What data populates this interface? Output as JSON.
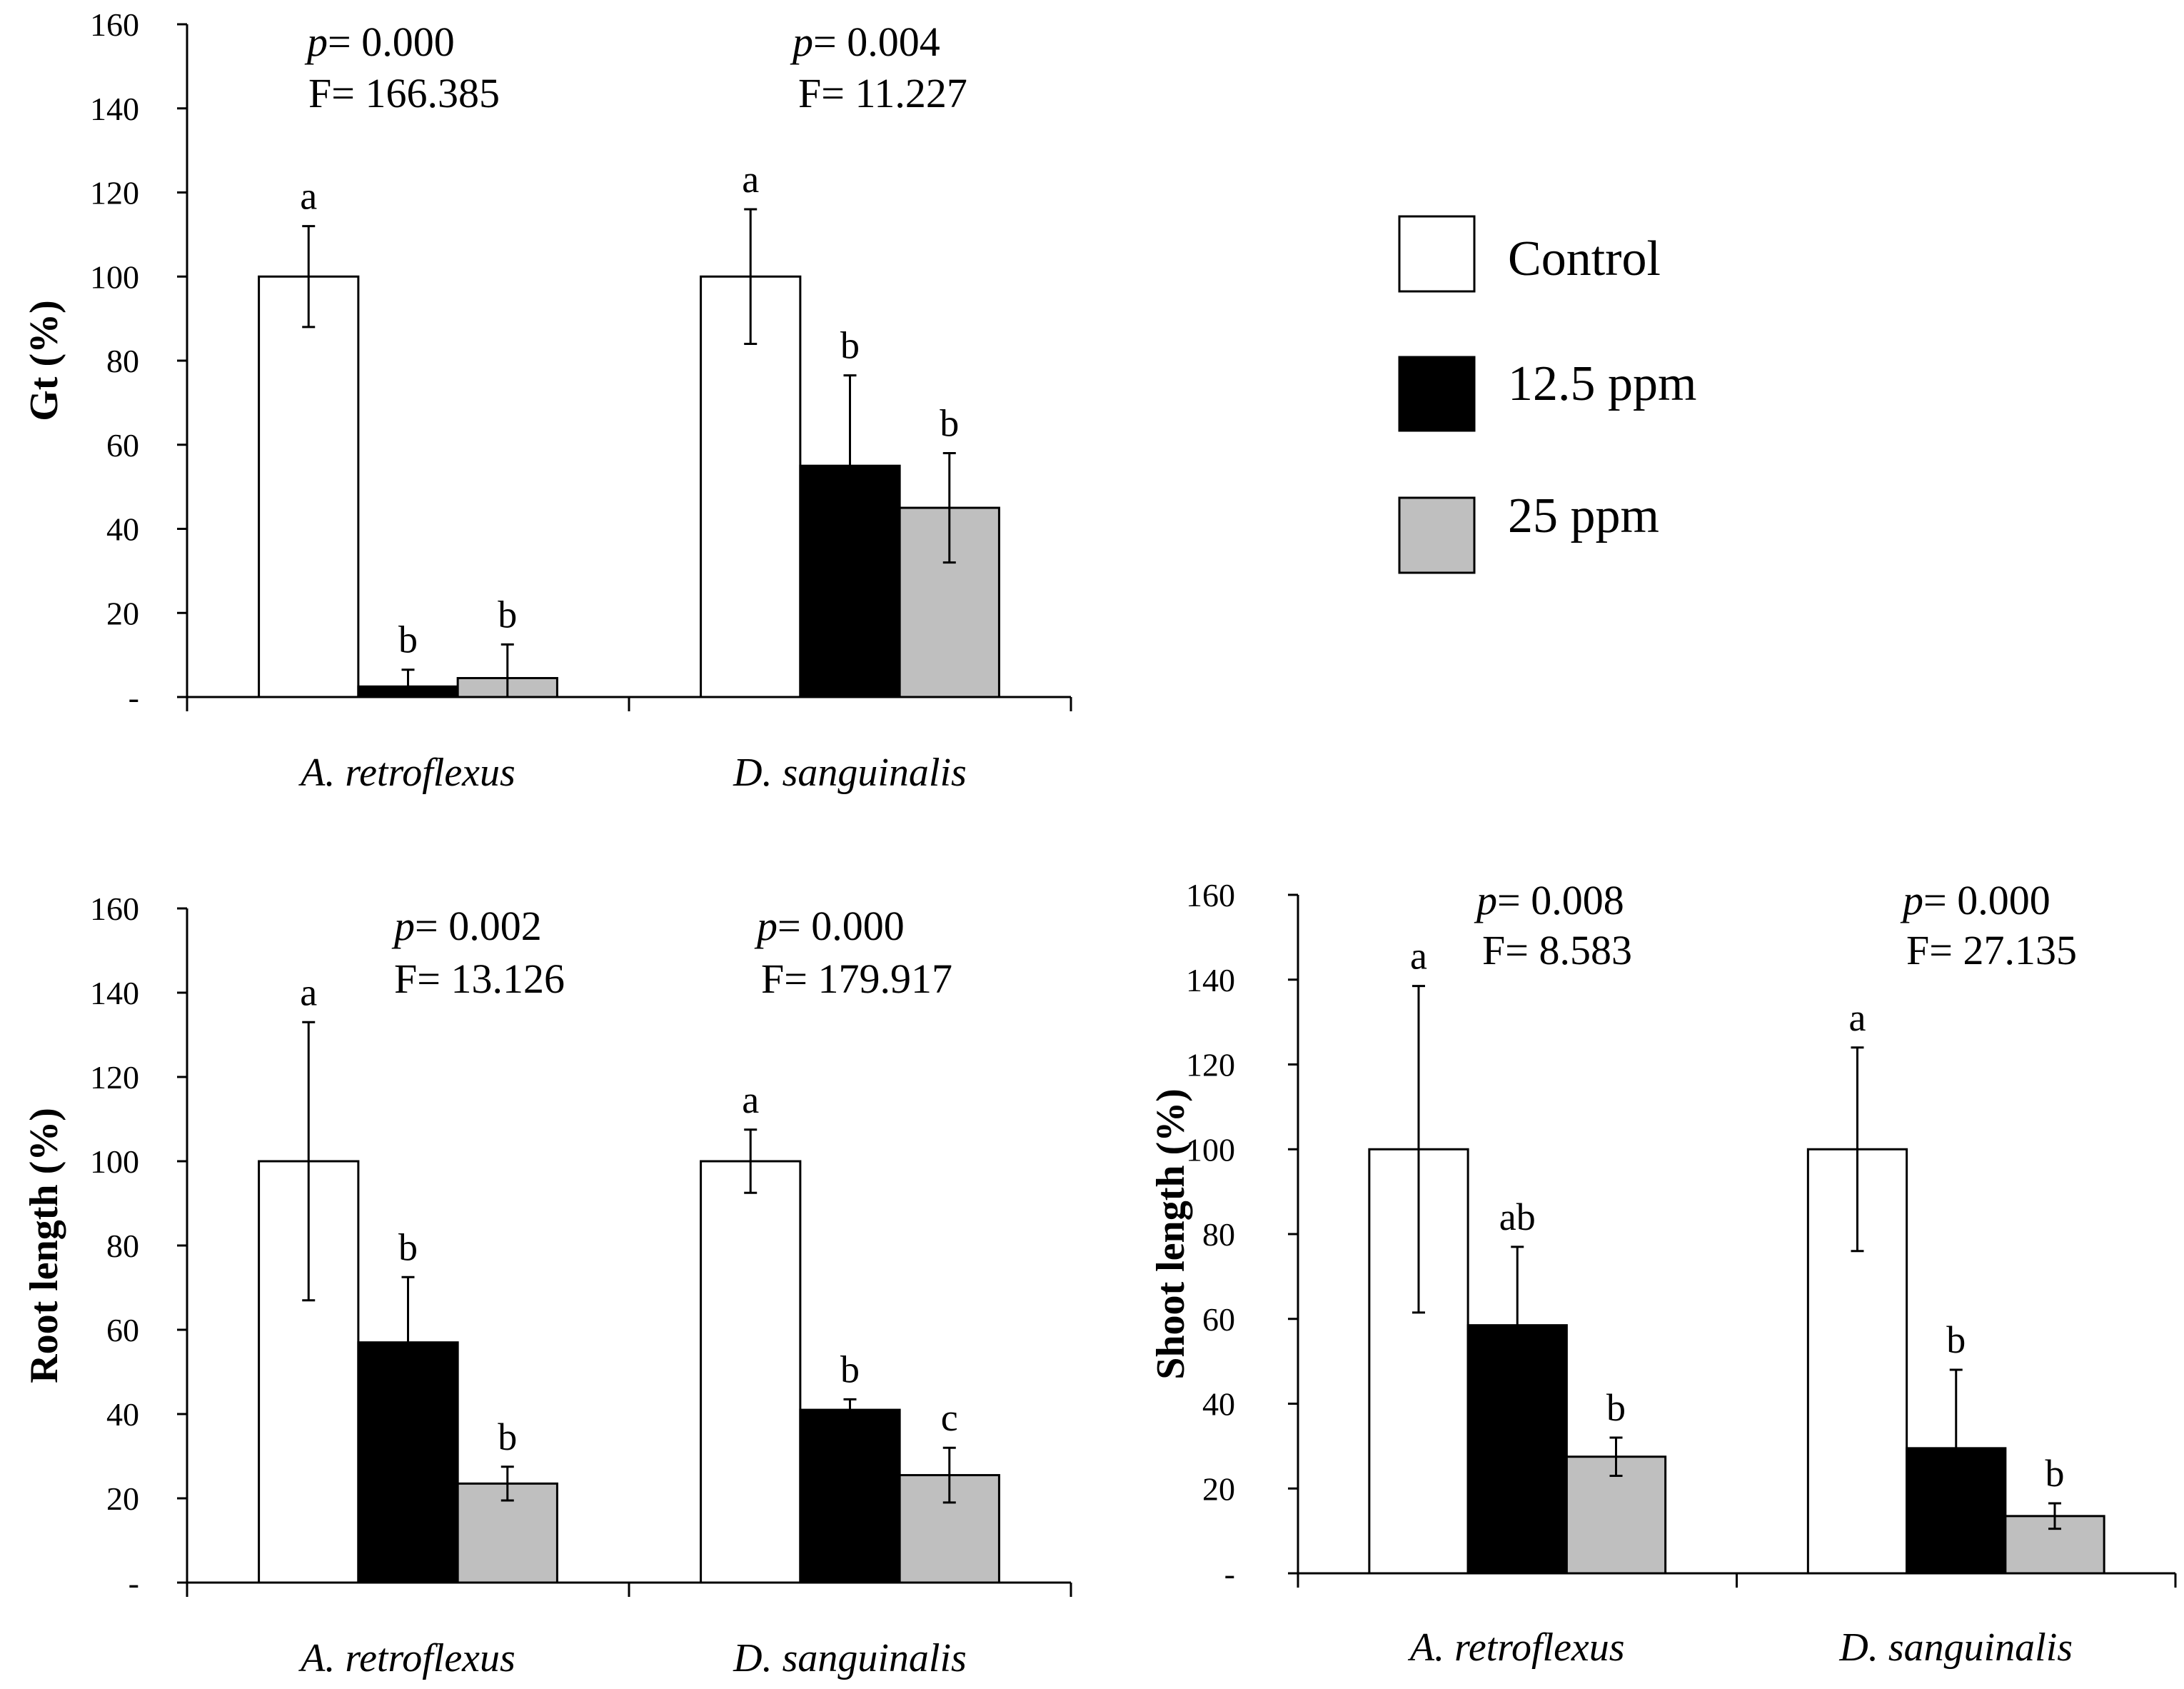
{
  "legend": {
    "entries": [
      {
        "label": "Control",
        "color": "#ffffff"
      },
      {
        "label": "12.5 ppm",
        "color": "#000000"
      },
      {
        "label": "25 ppm",
        "color": "#bfbfbf"
      }
    ]
  },
  "chart_data": [
    {
      "type": "bar",
      "ylabel": "Gt (%)",
      "ylim": [
        0,
        160
      ],
      "yticks": [
        "-",
        "20",
        "40",
        "60",
        "80",
        "100",
        "120",
        "140",
        "160"
      ],
      "categories": [
        "A. retroflexus",
        "D. sanguinalis"
      ],
      "series": [
        {
          "name": "Control",
          "values": [
            100,
            100
          ],
          "errors": [
            12,
            16
          ],
          "letters": [
            "a",
            "a"
          ]
        },
        {
          "name": "12.5 ppm",
          "values": [
            2.5,
            55
          ],
          "errors": [
            4,
            21.5
          ],
          "letters": [
            "b",
            "b"
          ]
        },
        {
          "name": "25 ppm",
          "values": [
            4.5,
            45
          ],
          "errors": [
            8,
            13
          ],
          "letters": [
            "b",
            "b"
          ]
        }
      ],
      "annotations": [
        {
          "p": "= 0.000",
          "F": "F= 166.385"
        },
        {
          "p": "= 0.004",
          "F": "F= 11.227"
        }
      ]
    },
    {
      "type": "bar",
      "ylabel": "Root length (%)",
      "ylim": [
        0,
        160
      ],
      "yticks": [
        "-",
        "20",
        "40",
        "60",
        "80",
        "100",
        "120",
        "140",
        "160"
      ],
      "categories": [
        "A. retroflexus",
        "D. sanguinalis"
      ],
      "series": [
        {
          "name": "Control",
          "values": [
            100,
            100
          ],
          "errors": [
            33,
            7.5
          ],
          "letters": [
            "a",
            "a"
          ]
        },
        {
          "name": "12.5 ppm",
          "values": [
            57,
            41
          ],
          "errors": [
            15.5,
            2.5
          ],
          "letters": [
            "b",
            "b"
          ]
        },
        {
          "name": "25 ppm",
          "values": [
            23.5,
            25.5
          ],
          "errors": [
            4,
            6.5
          ],
          "letters": [
            "b",
            "c"
          ]
        }
      ],
      "annotations": [
        {
          "p": "= 0.002",
          "F": "F= 13.126"
        },
        {
          "p": "= 0.000",
          "F": "F= 179.917"
        }
      ]
    },
    {
      "type": "bar",
      "ylabel": "Shoot length (%)",
      "ylim": [
        0,
        160
      ],
      "yticks": [
        "-",
        "20",
        "40",
        "60",
        "80",
        "100",
        "120",
        "140",
        "160"
      ],
      "categories": [
        "A. retroflexus",
        "D. sanguinalis"
      ],
      "series": [
        {
          "name": "Control",
          "values": [
            100,
            100
          ],
          "errors": [
            38.5,
            24
          ],
          "letters": [
            "a",
            "a"
          ]
        },
        {
          "name": "12.5 ppm",
          "values": [
            58.5,
            29.5
          ],
          "errors": [
            18.5,
            18.5
          ],
          "letters": [
            "ab",
            "b"
          ]
        },
        {
          "name": "25 ppm",
          "values": [
            27.5,
            13.5
          ],
          "errors": [
            4.5,
            3
          ],
          "letters": [
            "b",
            "b"
          ]
        }
      ],
      "annotations": [
        {
          "p": "= 0.008",
          "F": "F= 8.583"
        },
        {
          "p": "= 0.000",
          "F": "F= 27.135"
        }
      ]
    }
  ]
}
